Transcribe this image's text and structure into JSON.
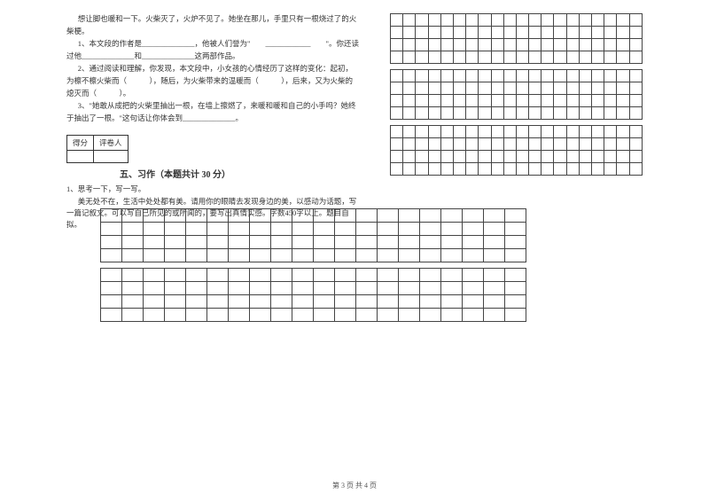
{
  "passage": {
    "line1": "想让脚也暖和一下。火柴灭了，火炉不见了。她坐在那儿，手里只有一根烧过了的火柴梗。",
    "q1": "1、本文段的作者是______________，他被人们誉为\"　　____________　　\"。你还读过他______________和______________这两部作品。",
    "q2": "2、通过阅读和理解，你发现，本文段中，小女孩的心情经历了这样的变化：起初，为檫不檫火柴而（　　　），随后，为火柴带来的温暖而（　　　），后来，又为火柴的熄灭而（　　　）。",
    "q3": "3、\"她敢从成把的火柴里抽出一根，在墙上擦燃了，来暖和暖和自己的小手吗？她终于抽出了一根。\"这句话让你体会到______________。"
  },
  "scorebox": {
    "label1": "得分",
    "label2": "评卷人"
  },
  "section5": {
    "title": "五、习作（本题共计 30 分）",
    "prompt_head": "1、思考一下，写一写。",
    "prompt_body": "美无处不在，生活中处处都有美。请用你的眼睛去发现身边的美，以感动为话题，写一篇记叙文。可以写自己所见的或所闻的，要写出真情实感。字数450字以上。题目自拟。"
  },
  "footer": "第 3 页  共 4 页",
  "grids": {
    "right_small": {
      "rows_per_block": 4,
      "cols": 20,
      "blocks": 3
    },
    "left_large": {
      "rows_per_block": 4,
      "cols": 20,
      "blocks": 2
    }
  },
  "colors": {
    "text": "#333333",
    "border": "#444444",
    "background": "#ffffff"
  }
}
